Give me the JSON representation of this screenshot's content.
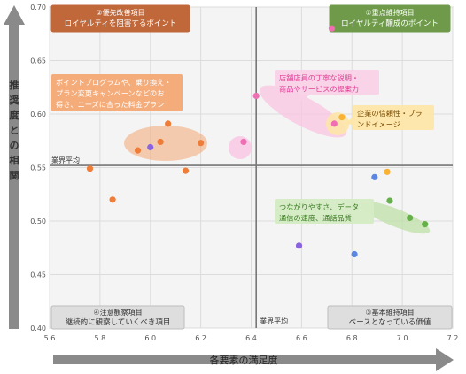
{
  "chart_data": {
    "type": "scatter",
    "title": "",
    "xlabel": "各要素の満足度",
    "ylabel": "推奨度との相関",
    "xlim": [
      5.6,
      7.2
    ],
    "ylim": [
      0.4,
      0.7
    ],
    "x_ticks": [
      "5.6",
      "5.8",
      "6.0",
      "6.2",
      "6.4",
      "6.6",
      "6.8",
      "7.0",
      "7.2"
    ],
    "y_ticks": [
      "0.40",
      "0.45",
      "0.50",
      "0.55",
      "0.60",
      "0.65",
      "0.70"
    ],
    "average": {
      "x": 6.42,
      "y": 0.552,
      "x_label": "業界平均",
      "y_label": "業界平均"
    },
    "quadrants": {
      "top_left": {
        "line1": "②優先改善項目",
        "line2": "ロイヤルティを阻害するポイント",
        "color": "#c0683a"
      },
      "top_right": {
        "line1": "①重点維持項目",
        "line2": "ロイヤルティ醸成のポイント",
        "color": "#6e9a4a"
      },
      "bottom_left": {
        "line1": "④注意観察項目",
        "line2": "継続的に観察していくべき項目",
        "color": "#9a9a9a"
      },
      "bottom_right": {
        "line1": "③基本維持項目",
        "line2": "ベースとなっている価値",
        "color": "#9a9a9a"
      }
    },
    "series": [
      {
        "color": "#ee7d3a",
        "points": [
          {
            "x": 5.76,
            "y": 0.549
          },
          {
            "x": 5.85,
            "y": 0.52
          },
          {
            "x": 5.95,
            "y": 0.566
          },
          {
            "x": 6.04,
            "y": 0.574
          },
          {
            "x": 6.07,
            "y": 0.591
          },
          {
            "x": 6.14,
            "y": 0.547
          },
          {
            "x": 6.2,
            "y": 0.573
          }
        ]
      },
      {
        "color": "#f06fb4",
        "points": [
          {
            "x": 6.37,
            "y": 0.574
          },
          {
            "x": 6.42,
            "y": 0.617
          },
          {
            "x": 6.72,
            "y": 0.68
          },
          {
            "x": 6.73,
            "y": 0.591
          }
        ]
      },
      {
        "color": "#f9b233",
        "points": [
          {
            "x": 6.76,
            "y": 0.597
          },
          {
            "x": 6.94,
            "y": 0.546
          }
        ]
      },
      {
        "color": "#66b04a",
        "points": [
          {
            "x": 6.95,
            "y": 0.519
          },
          {
            "x": 7.03,
            "y": 0.503
          },
          {
            "x": 7.09,
            "y": 0.497
          }
        ]
      },
      {
        "color": "#5b87e0",
        "points": [
          {
            "x": 6.89,
            "y": 0.541
          },
          {
            "x": 6.81,
            "y": 0.469
          }
        ]
      },
      {
        "color": "#8a63e0",
        "points": [
          {
            "x": 6.0,
            "y": 0.569
          },
          {
            "x": 6.59,
            "y": 0.477
          }
        ]
      }
    ],
    "annotations": [
      {
        "lines": [
          "ポイントプログラムや、乗り換え・",
          "プラン変更キャンペーンなどのお",
          "得さ、ニーズに合った料金プラン"
        ],
        "color": "#ffffff",
        "bg": "#f4a874"
      },
      {
        "lines": [
          "店舗店員の丁寧な説明・",
          "商品やサービスの提案力"
        ],
        "color": "#e23d97",
        "bg": "#f9d1e6"
      },
      {
        "lines": [
          "企業の信頼性・ブラ",
          "ンドイメージ"
        ],
        "color": "#7a4a00",
        "bg": "#fde6a8"
      },
      {
        "lines": [
          "つながりやすさ、データ",
          "通信の速度、通話品質"
        ],
        "color": "#3c7a23",
        "bg": "#d4ebc4"
      }
    ]
  }
}
